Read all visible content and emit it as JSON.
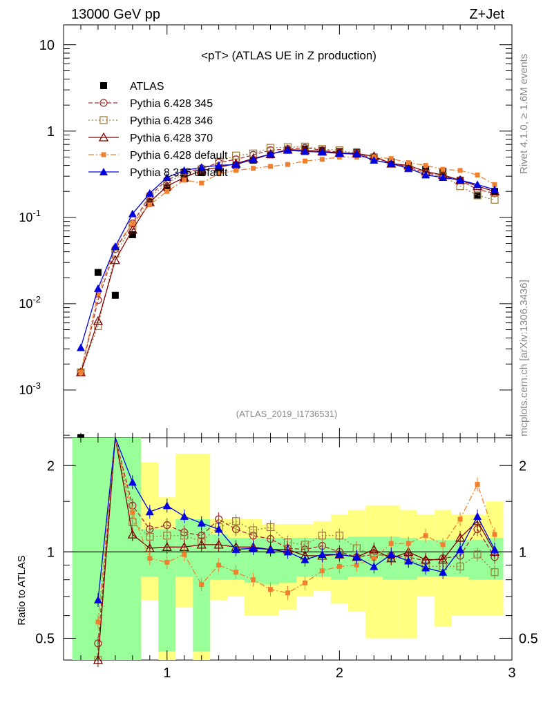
{
  "header": {
    "left": "13000 GeV pp",
    "right": "Z+Jet",
    "side_top": "Rivet 4.1.0, ≥ 1.6M events",
    "side_bottom": "mcplots.cern.ch [arXiv:1306.3436]",
    "analysis_id": "(ATLAS_2019_I1736531)"
  },
  "colors": {
    "atlas": "#000000",
    "p345": "#a03030",
    "p346": "#a08040",
    "p370": "#800000",
    "pdef6": "#f08030",
    "p8": "#0000e0",
    "band_yellow": "#ffff80",
    "band_green": "#99ff99"
  },
  "chart_data": [
    {
      "type": "line",
      "title": "<pT> (ATLAS UE in Z production)",
      "xlabel": "",
      "ylabel": "",
      "yscale": "log",
      "xlim": [
        0.4,
        3.0
      ],
      "ylim": [
        0.00028,
        17
      ],
      "x_ticks": [
        "1",
        "2",
        "3"
      ],
      "y_ticks": [
        "10^-3",
        "10^-2",
        "10^-1",
        "1",
        "10"
      ],
      "series": [
        {
          "name": "ATLAS",
          "key": "atlas",
          "style": "marker",
          "x": [
            0.5,
            0.6,
            0.7,
            0.8,
            0.9,
            1.0,
            1.1,
            1.2,
            1.3,
            1.4,
            1.5,
            1.6,
            1.7,
            1.8,
            1.9,
            2.0,
            2.1,
            2.2,
            2.3,
            2.4,
            2.5,
            2.6,
            2.7,
            2.8,
            2.9
          ],
          "y": [
            0.00026,
            0.023,
            0.0125,
            0.063,
            0.15,
            0.22,
            0.28,
            0.33,
            0.36,
            0.4,
            0.46,
            0.53,
            0.6,
            0.62,
            0.6,
            0.58,
            0.57,
            0.5,
            0.44,
            0.4,
            0.36,
            0.34,
            0.27,
            0.18,
            0.2
          ]
        },
        {
          "name": "Pythia 6.428 345",
          "key": "p345",
          "style": "dashed",
          "x": [
            0.5,
            0.6,
            0.7,
            0.8,
            0.9,
            1.0,
            1.1,
            1.2,
            1.3,
            1.4,
            1.5,
            1.6,
            1.7,
            1.8,
            1.9,
            2.0,
            2.1,
            2.2,
            2.3,
            2.4,
            2.5,
            2.6,
            2.7,
            2.8,
            2.9
          ],
          "y": [
            0.0016,
            0.011,
            0.043,
            0.085,
            0.18,
            0.27,
            0.33,
            0.37,
            0.43,
            0.47,
            0.53,
            0.6,
            0.62,
            0.64,
            0.6,
            0.57,
            0.54,
            0.49,
            0.43,
            0.38,
            0.33,
            0.3,
            0.27,
            0.21,
            0.19
          ]
        },
        {
          "name": "Pythia 6.428 346",
          "key": "p346",
          "style": "dotted",
          "x": [
            0.5,
            0.6,
            0.7,
            0.8,
            0.9,
            1.0,
            1.1,
            1.2,
            1.3,
            1.4,
            1.5,
            1.6,
            1.7,
            1.8,
            1.9,
            2.0,
            2.1,
            2.2,
            2.3,
            2.4,
            2.5,
            2.6,
            2.7,
            2.8,
            2.9
          ],
          "y": [
            0.0016,
            0.0055,
            0.038,
            0.08,
            0.17,
            0.25,
            0.32,
            0.36,
            0.44,
            0.52,
            0.55,
            0.64,
            0.65,
            0.66,
            0.62,
            0.6,
            0.55,
            0.49,
            0.42,
            0.37,
            0.32,
            0.3,
            0.23,
            0.18,
            0.16
          ]
        },
        {
          "name": "Pythia 6.428 370",
          "key": "p370",
          "style": "solid",
          "x": [
            0.5,
            0.6,
            0.7,
            0.8,
            0.9,
            1.0,
            1.1,
            1.2,
            1.3,
            1.4,
            1.5,
            1.6,
            1.7,
            1.8,
            1.9,
            2.0,
            2.1,
            2.2,
            2.3,
            2.4,
            2.5,
            2.6,
            2.7,
            2.8,
            2.9
          ],
          "y": [
            0.0016,
            0.0063,
            0.032,
            0.072,
            0.15,
            0.23,
            0.29,
            0.35,
            0.38,
            0.42,
            0.48,
            0.54,
            0.61,
            0.6,
            0.58,
            0.56,
            0.55,
            0.51,
            0.42,
            0.4,
            0.34,
            0.31,
            0.27,
            0.23,
            0.2
          ]
        },
        {
          "name": "Pythia 6.428 default",
          "key": "pdef6",
          "style": "dashdot",
          "x": [
            0.5,
            0.6,
            0.7,
            0.8,
            0.9,
            1.0,
            1.1,
            1.2,
            1.3,
            1.4,
            1.5,
            1.6,
            1.7,
            1.8,
            1.9,
            2.0,
            2.1,
            2.2,
            2.3,
            2.4,
            2.5,
            2.6,
            2.7,
            2.8,
            2.9
          ],
          "y": [
            0.0016,
            0.013,
            0.045,
            0.085,
            0.14,
            0.2,
            0.27,
            0.25,
            0.32,
            0.35,
            0.37,
            0.39,
            0.41,
            0.45,
            0.47,
            0.5,
            0.5,
            0.5,
            0.48,
            0.43,
            0.4,
            0.36,
            0.35,
            0.31,
            0.24
          ]
        },
        {
          "name": "Pythia 8.315 default",
          "key": "p8",
          "style": "solid",
          "x": [
            0.5,
            0.6,
            0.7,
            0.8,
            0.9,
            1.0,
            1.1,
            1.2,
            1.3,
            1.4,
            1.5,
            1.6,
            1.7,
            1.8,
            1.9,
            2.0,
            2.1,
            2.2,
            2.3,
            2.4,
            2.5,
            2.6,
            2.7,
            2.8,
            2.9
          ],
          "y": [
            0.0031,
            0.015,
            0.046,
            0.11,
            0.19,
            0.29,
            0.35,
            0.38,
            0.4,
            0.41,
            0.47,
            0.54,
            0.6,
            0.58,
            0.57,
            0.55,
            0.54,
            0.46,
            0.42,
            0.37,
            0.31,
            0.29,
            0.27,
            0.24,
            0.21
          ]
        }
      ],
      "legend": "top-left"
    },
    {
      "type": "line",
      "title": "",
      "xlabel": "",
      "ylabel": "Ratio to ATLAS",
      "yscale": "log",
      "xlim": [
        0.4,
        3.0
      ],
      "ylim": [
        0.42,
        2.5
      ],
      "x_ticks": [
        "1",
        "2",
        "3"
      ],
      "y_ticks_left": [
        "0.5",
        "1",
        "2"
      ],
      "y_ticks_right": [
        "0.5",
        "1",
        "2"
      ],
      "band_x": [
        0.5,
        0.6,
        0.7,
        0.8,
        0.9,
        1.0,
        1.1,
        1.2,
        1.3,
        1.4,
        1.5,
        1.6,
        1.7,
        1.8,
        1.9,
        2.0,
        2.1,
        2.2,
        2.3,
        2.4,
        2.5,
        2.6,
        2.7,
        2.8,
        2.9
      ],
      "band_yellow_lo": [
        0.05,
        0.05,
        0.05,
        0.05,
        0.68,
        0.32,
        0.64,
        0.32,
        0.68,
        0.7,
        0.6,
        0.6,
        0.63,
        0.7,
        0.73,
        0.66,
        0.62,
        0.5,
        0.5,
        0.5,
        0.7,
        0.55,
        0.6,
        0.6,
        0.6
      ],
      "band_yellow_hi": [
        5,
        5,
        5,
        5,
        2.05,
        1.55,
        2.2,
        2.2,
        1.3,
        1.3,
        1.3,
        1.25,
        1.25,
        1.25,
        1.28,
        1.35,
        1.4,
        1.45,
        1.45,
        1.4,
        1.35,
        1.4,
        1.35,
        1.35,
        1.5
      ],
      "band_green_lo": [
        0.05,
        0.05,
        0.05,
        0.05,
        0.82,
        0.45,
        0.82,
        0.45,
        0.8,
        0.8,
        0.78,
        0.77,
        0.78,
        0.82,
        0.82,
        0.8,
        0.82,
        0.82,
        0.8,
        0.8,
        0.82,
        0.82,
        0.82,
        0.8,
        0.8
      ],
      "band_green_hi": [
        5,
        5,
        5,
        5,
        1.2,
        1.2,
        1.3,
        1.3,
        1.15,
        1.12,
        1.12,
        1.12,
        1.12,
        1.12,
        1.12,
        1.12,
        1.13,
        1.13,
        1.13,
        1.12,
        1.1,
        1.1,
        1.1,
        1.1,
        1.12
      ],
      "series": [
        {
          "key": "p345",
          "x": [
            0.6,
            0.7,
            0.8,
            0.9,
            1.0,
            1.1,
            1.2,
            1.3,
            1.4,
            1.5,
            1.6,
            1.7,
            1.8,
            1.9,
            2.0,
            2.1,
            2.2,
            2.3,
            2.4,
            2.5,
            2.6,
            2.7,
            2.8,
            2.9
          ],
          "y": [
            0.48,
            3.0,
            1.45,
            1.2,
            1.24,
            1.17,
            1.14,
            1.3,
            1.2,
            1.14,
            1.11,
            1.03,
            1.02,
            1.05,
            1.0,
            0.96,
            0.98,
            0.97,
            0.96,
            0.93,
            0.95,
            0.97,
            1.2,
            0.96
          ]
        },
        {
          "key": "p346",
          "x": [
            0.6,
            0.7,
            0.8,
            0.9,
            1.0,
            1.1,
            1.2,
            1.3,
            1.4,
            1.5,
            1.6,
            1.7,
            1.8,
            1.9,
            2.0,
            2.1,
            2.2,
            2.3,
            2.4,
            2.5,
            2.6,
            2.7,
            2.8,
            2.9
          ],
          "y": [
            0.24,
            3.0,
            1.27,
            1.13,
            1.14,
            1.14,
            1.09,
            1.22,
            1.28,
            1.19,
            1.22,
            1.08,
            1.06,
            1.14,
            1.14,
            1.03,
            0.98,
            0.96,
            0.94,
            0.89,
            0.89,
            0.89,
            0.98,
            0.85
          ]
        },
        {
          "key": "p370",
          "x": [
            0.6,
            0.7,
            0.8,
            0.9,
            1.0,
            1.1,
            1.2,
            1.3,
            1.4,
            1.5,
            1.6,
            1.7,
            1.8,
            1.9,
            2.0,
            2.1,
            2.2,
            2.3,
            2.4,
            2.5,
            2.6,
            2.7,
            2.8,
            2.9
          ],
          "y": [
            0.27,
            3.0,
            1.15,
            1.03,
            1.04,
            1.04,
            1.06,
            1.06,
            1.04,
            1.04,
            1.02,
            1.02,
            0.97,
            0.97,
            0.98,
            0.96,
            1.02,
            0.95,
            1.0,
            0.94,
            0.94,
            1.12,
            1.28,
            1.0
          ]
        },
        {
          "key": "pdef6",
          "x": [
            0.6,
            0.7,
            0.8,
            0.9,
            1.0,
            1.1,
            1.2,
            1.3,
            1.4,
            1.5,
            1.6,
            1.7,
            1.8,
            1.9,
            2.0,
            2.1,
            2.2,
            2.3,
            2.4,
            2.5,
            2.6,
            2.7,
            2.8,
            2.9
          ],
          "y": [
            0.57,
            3.0,
            1.37,
            0.95,
            0.92,
            0.98,
            0.77,
            0.9,
            0.85,
            0.8,
            0.74,
            0.72,
            0.78,
            0.86,
            0.89,
            0.9,
            0.95,
            1.07,
            1.07,
            1.14,
            1.06,
            1.3,
            1.72,
            1.15
          ]
        },
        {
          "key": "p8",
          "x": [
            0.6,
            0.7,
            0.8,
            0.9,
            1.0,
            1.1,
            1.2,
            1.3,
            1.4,
            1.5,
            1.6,
            1.7,
            1.8,
            1.9,
            2.0,
            2.1,
            2.2,
            2.3,
            2.4,
            2.5,
            2.6,
            2.7,
            2.8,
            2.9
          ],
          "y": [
            0.68,
            3.0,
            1.75,
            1.38,
            1.45,
            1.33,
            1.26,
            1.2,
            1.02,
            1.03,
            1.02,
            1.0,
            0.94,
            0.98,
            0.98,
            0.96,
            0.89,
            0.98,
            0.93,
            0.88,
            0.85,
            1.02,
            1.33,
            1.02
          ]
        }
      ]
    }
  ]
}
